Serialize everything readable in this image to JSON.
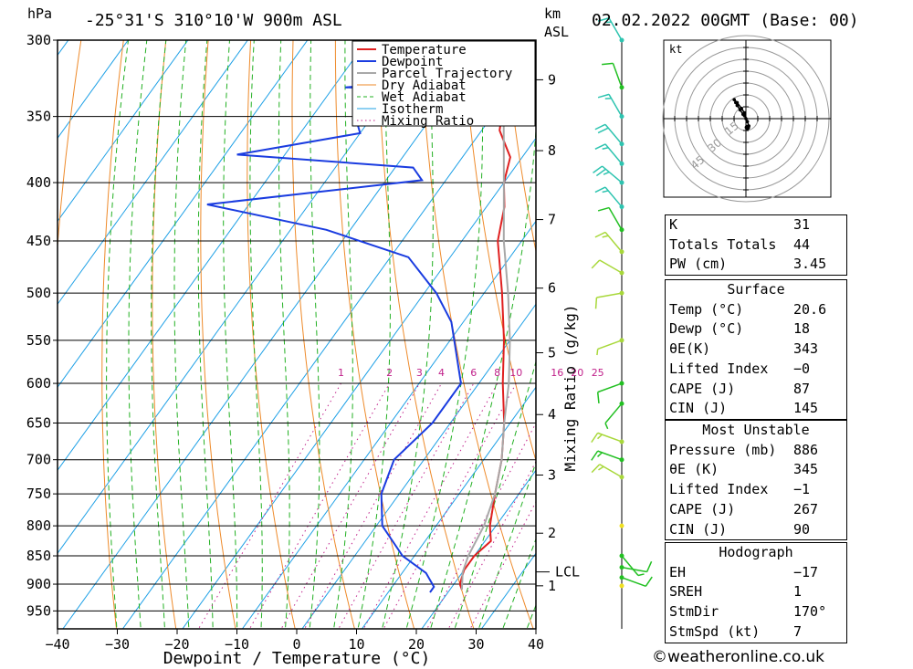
{
  "header": {
    "pressure_unit": "hPa",
    "location": "-25°31'S  310°10'W  900m  ASL",
    "km_label": "km",
    "asl_label": "ASL",
    "datetime": "02.02.2022  00GMT  (Base: 00)"
  },
  "colors": {
    "temperature": "#e02020",
    "dewpoint": "#1a3ce0",
    "parcel": "#a8a8a8",
    "dry_adiabat": "#ee8a2a",
    "wet_adiabat": "#22b022",
    "isotherm": "#1ea0e6",
    "mixing_ratio": "#c0208a",
    "wind_cyan": "#2ec4b0",
    "wind_green": "#22c022",
    "wind_lime": "#a8d83a",
    "wind_yellow": "#f0e020"
  },
  "chart_data": {
    "type": "line",
    "title": "Skew-T log-P diagram",
    "xlabel": "Dewpoint / Temperature (°C)",
    "ylabel": "hPa",
    "y2label": "Mixing Ratio (g/kg)",
    "xlim": [
      -40,
      40
    ],
    "ylim": [
      985,
      300
    ],
    "x_ticks": [
      "−40",
      "−30",
      "−20",
      "−10",
      "0",
      "10",
      "20",
      "30",
      "40"
    ],
    "pressure_levels": [
      300,
      350,
      400,
      450,
      500,
      550,
      600,
      650,
      700,
      750,
      800,
      850,
      900,
      950
    ],
    "km_ticks": [
      {
        "p": 325,
        "label": "9"
      },
      {
        "p": 375,
        "label": "8"
      },
      {
        "p": 431,
        "label": "7"
      },
      {
        "p": 495,
        "label": "6"
      },
      {
        "p": 564,
        "label": "5"
      },
      {
        "p": 639,
        "label": "4"
      },
      {
        "p": 722,
        "label": "3"
      },
      {
        "p": 812,
        "label": "2"
      },
      {
        "p": 903,
        "label": "1"
      }
    ],
    "lcl": {
      "p": 878,
      "label": "LCL"
    },
    "mixing_ratio_labels": [
      "1",
      "2",
      "3",
      "4",
      "6",
      "8",
      "10",
      "16",
      "20",
      "25"
    ],
    "legend": [
      "Temperature",
      "Dewpoint",
      "Parcel Trajectory",
      "Dry Adiabat",
      "Wet Adiabat",
      "Isotherm",
      "Mixing Ratio"
    ],
    "series": [
      {
        "name": "Temperature",
        "points": [
          [
            300,
            -34
          ],
          [
            318,
            -34
          ],
          [
            338,
            -30
          ],
          [
            360,
            -27
          ],
          [
            380,
            -22
          ],
          [
            400,
            -20
          ],
          [
            420,
            -17
          ],
          [
            450,
            -14
          ],
          [
            500,
            -7
          ],
          [
            550,
            -1
          ],
          [
            600,
            4
          ],
          [
            650,
            9
          ],
          [
            700,
            13
          ],
          [
            750,
            16
          ],
          [
            800,
            19
          ],
          [
            825,
            21
          ],
          [
            850,
            20
          ],
          [
            875,
            20
          ],
          [
            900,
            21
          ],
          [
            910,
            22
          ]
        ]
      },
      {
        "name": "Dewpoint",
        "points": [
          [
            300,
            -54
          ],
          [
            322,
            -33
          ],
          [
            330,
            -58
          ],
          [
            333,
            -37
          ],
          [
            337,
            -55
          ],
          [
            339,
            -34
          ],
          [
            345,
            -54
          ],
          [
            362,
            -50
          ],
          [
            378,
            -68
          ],
          [
            388,
            -37
          ],
          [
            398,
            -34
          ],
          [
            418,
            -67
          ],
          [
            440,
            -44
          ],
          [
            465,
            -27
          ],
          [
            500,
            -18
          ],
          [
            530,
            -12
          ],
          [
            600,
            -3
          ],
          [
            650,
            -3
          ],
          [
            700,
            -5
          ],
          [
            750,
            -3
          ],
          [
            800,
            1
          ],
          [
            850,
            8
          ],
          [
            880,
            14
          ],
          [
            905,
            17
          ],
          [
            915,
            17
          ]
        ]
      },
      {
        "name": "Parcel Trajectory",
        "points": [
          [
            300,
            -37
          ],
          [
            350,
            -28
          ],
          [
            400,
            -20
          ],
          [
            450,
            -13
          ],
          [
            500,
            -6
          ],
          [
            550,
            0
          ],
          [
            600,
            5
          ],
          [
            650,
            9
          ],
          [
            700,
            13
          ],
          [
            750,
            16
          ],
          [
            800,
            18
          ],
          [
            850,
            19
          ],
          [
            878,
            20
          ],
          [
            910,
            22
          ]
        ]
      }
    ],
    "wind_profile": [
      {
        "p": 300,
        "dir": 330,
        "speed_kt": 15,
        "color_key": "wind_cyan"
      },
      {
        "p": 330,
        "dir": 340,
        "speed_kt": 10,
        "color_key": "wind_green"
      },
      {
        "p": 350,
        "dir": 330,
        "speed_kt": 15,
        "color_key": "wind_cyan"
      },
      {
        "p": 370,
        "dir": 320,
        "speed_kt": 20,
        "color_key": "wind_cyan"
      },
      {
        "p": 385,
        "dir": 320,
        "speed_kt": 15,
        "color_key": "wind_cyan"
      },
      {
        "p": 400,
        "dir": 310,
        "speed_kt": 25,
        "color_key": "wind_cyan"
      },
      {
        "p": 420,
        "dir": 320,
        "speed_kt": 15,
        "color_key": "wind_cyan"
      },
      {
        "p": 440,
        "dir": 330,
        "speed_kt": 10,
        "color_key": "wind_green"
      },
      {
        "p": 460,
        "dir": 320,
        "speed_kt": 15,
        "color_key": "wind_lime"
      },
      {
        "p": 480,
        "dir": 300,
        "speed_kt": 10,
        "color_key": "wind_lime"
      },
      {
        "p": 500,
        "dir": 260,
        "speed_kt": 10,
        "color_key": "wind_lime"
      },
      {
        "p": 550,
        "dir": 250,
        "speed_kt": 5,
        "color_key": "wind_lime"
      },
      {
        "p": 600,
        "dir": 250,
        "speed_kt": 10,
        "color_key": "wind_green"
      },
      {
        "p": 625,
        "dir": 220,
        "speed_kt": 5,
        "color_key": "wind_green"
      },
      {
        "p": 675,
        "dir": 290,
        "speed_kt": 15,
        "color_key": "wind_lime"
      },
      {
        "p": 700,
        "dir": 290,
        "speed_kt": 15,
        "color_key": "wind_green"
      },
      {
        "p": 725,
        "dir": 300,
        "speed_kt": 15,
        "color_key": "wind_lime"
      },
      {
        "p": 800,
        "dir": 0,
        "speed_kt": 0,
        "color_key": "wind_yellow"
      },
      {
        "p": 850,
        "dir": 140,
        "speed_kt": 5,
        "color_key": "wind_green"
      },
      {
        "p": 870,
        "dir": 100,
        "speed_kt": 10,
        "color_key": "wind_green"
      },
      {
        "p": 888,
        "dir": 110,
        "speed_kt": 10,
        "color_key": "wind_green"
      },
      {
        "p": 903,
        "dir": 0,
        "speed_kt": 0,
        "color_key": "wind_yellow"
      }
    ],
    "hodograph": {
      "unit_label": "kt",
      "ring_labels": [
        "15",
        "30",
        "45"
      ],
      "points": [
        [
          0,
          0
        ],
        [
          -1,
          2
        ],
        [
          -2,
          3
        ],
        [
          -4,
          6
        ],
        [
          -6,
          9
        ],
        [
          -7,
          11
        ],
        [
          -8,
          13
        ],
        [
          -6,
          11
        ],
        [
          -3,
          7
        ],
        [
          -1,
          4
        ],
        [
          1,
          -2
        ],
        [
          2,
          -5
        ]
      ],
      "storm_motion": [
        1,
        -6
      ]
    }
  },
  "indices": {
    "k_label": "K",
    "k_value": "31",
    "tt_label": "Totals Totals",
    "tt_value": "44",
    "pw_label": "PW (cm)",
    "pw_value": "3.45"
  },
  "surface": {
    "title": "Surface",
    "temp_label": "Temp (°C)",
    "temp_value": "20.6",
    "dewp_label": "Dewp (°C)",
    "dewp_value": "18",
    "theta_label": "θE(K)",
    "theta_value": "343",
    "li_label": "Lifted Index",
    "li_value": "−0",
    "cape_label": "CAPE (J)",
    "cape_value": "87",
    "cin_label": "CIN (J)",
    "cin_value": "145"
  },
  "most_unstable": {
    "title": "Most Unstable",
    "pressure_label": "Pressure (mb)",
    "pressure_value": "886",
    "theta_label": "θE (K)",
    "theta_value": "345",
    "li_label": "Lifted Index",
    "li_value": "−1",
    "cape_label": "CAPE (J)",
    "cape_value": "267",
    "cin_label": "CIN (J)",
    "cin_value": "90"
  },
  "hodograph_table": {
    "title": "Hodograph",
    "eh_label": "EH",
    "eh_value": "−17",
    "sreh_label": "SREH",
    "sreh_value": "1",
    "stmdir_label": "StmDir",
    "stmdir_value": "170°",
    "stmspd_label": "StmSpd (kt)",
    "stmspd_value": "7"
  },
  "footer": {
    "copyright": "©weatheronline.co.uk"
  }
}
